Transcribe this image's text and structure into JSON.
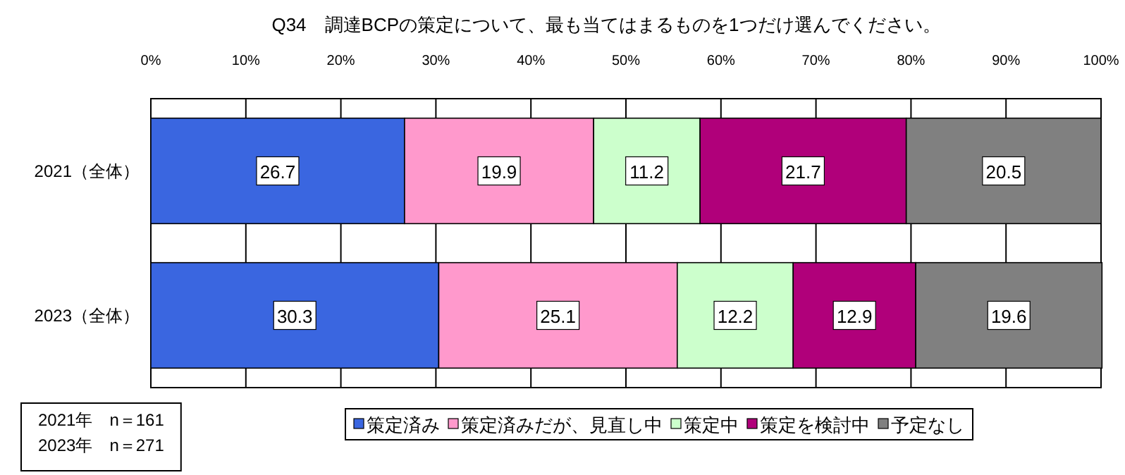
{
  "chart_data": {
    "type": "bar",
    "orientation": "horizontal",
    "stacked": true,
    "title": "Q34　調達BCPの策定について、最も当てはまるものを1つだけ選んでください。",
    "categories": [
      "2021（全体）",
      "2023（全体）"
    ],
    "series": [
      {
        "name": "策定済み",
        "color": "#3a66e0",
        "values": [
          26.7,
          30.3
        ]
      },
      {
        "name": "策定済みだが、見直し中",
        "color": "#ff99cc",
        "values": [
          19.9,
          25.1
        ]
      },
      {
        "name": "策定中",
        "color": "#ccffcc",
        "values": [
          11.2,
          12.2
        ]
      },
      {
        "name": "策定を検討中",
        "color": "#b0007a",
        "values": [
          21.7,
          12.9
        ]
      },
      {
        "name": "予定なし",
        "color": "#808080",
        "values": [
          20.5,
          19.6
        ]
      }
    ],
    "xlim": [
      0,
      100
    ],
    "xticks": [
      {
        "value": 0,
        "label": "0%"
      },
      {
        "value": 10,
        "label": "10%"
      },
      {
        "value": 20,
        "label": "20%"
      },
      {
        "value": 30,
        "label": "30%"
      },
      {
        "value": 40,
        "label": "40%"
      },
      {
        "value": 50,
        "label": "50%"
      },
      {
        "value": 60,
        "label": "60%"
      },
      {
        "value": 70,
        "label": "70%"
      },
      {
        "value": 80,
        "label": "80%"
      },
      {
        "value": 90,
        "label": "90%"
      },
      {
        "value": 100,
        "label": "100%"
      }
    ],
    "grid": "x",
    "data_labels": true,
    "legend": "bottom",
    "annotations": [
      "2021年　n＝161",
      "2023年　n＝271"
    ]
  }
}
